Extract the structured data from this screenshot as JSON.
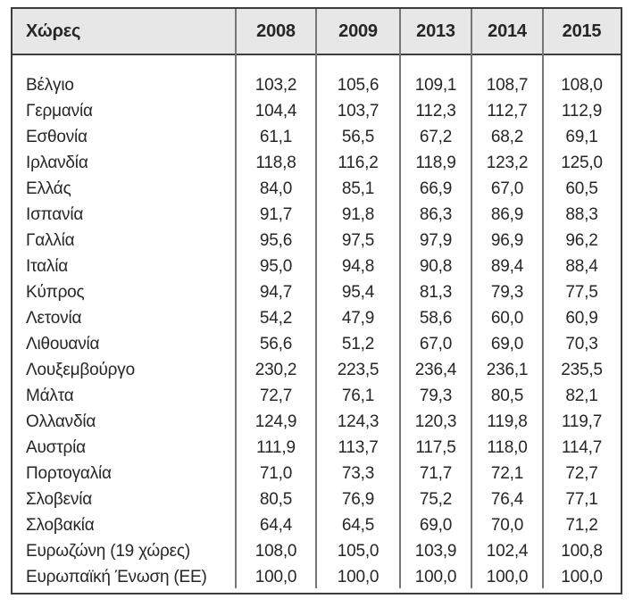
{
  "chart_data": {
    "type": "table",
    "title": "",
    "columns": [
      "Χώρες",
      "2008",
      "2009",
      "2013",
      "2014",
      "2015"
    ],
    "rows": [
      {
        "country": "Βέλγιο",
        "values": [
          "103,2",
          "105,6",
          "109,1",
          "108,7",
          "108,0"
        ]
      },
      {
        "country": "Γερμανία",
        "values": [
          "104,4",
          "103,7",
          "112,3",
          "112,7",
          "112,9"
        ]
      },
      {
        "country": "Εσθονία",
        "values": [
          "61,1",
          "56,5",
          "67,2",
          "68,2",
          "69,1"
        ]
      },
      {
        "country": "Ιρλανδία",
        "values": [
          "118,8",
          "116,2",
          "118,9",
          "123,2",
          "125,0"
        ]
      },
      {
        "country": "Ελλάς",
        "values": [
          "84,0",
          "85,1",
          "66,9",
          "67,0",
          "60,5"
        ]
      },
      {
        "country": "Ισπανία",
        "values": [
          "91,7",
          "91,8",
          "86,3",
          "86,9",
          "88,3"
        ]
      },
      {
        "country": "Γαλλία",
        "values": [
          "95,6",
          "97,5",
          "97,9",
          "96,9",
          "96,2"
        ]
      },
      {
        "country": "Ιταλία",
        "values": [
          "95,0",
          "94,8",
          "90,8",
          "89,4",
          "88,4"
        ]
      },
      {
        "country": "Κύπρος",
        "values": [
          "94,7",
          "95,4",
          "81,3",
          "79,3",
          "77,5"
        ]
      },
      {
        "country": "Λετονία",
        "values": [
          "54,2",
          "47,9",
          "58,6",
          "60,0",
          "60,9"
        ]
      },
      {
        "country": "Λιθουανία",
        "values": [
          "56,6",
          "51,2",
          "67,0",
          "69,0",
          "70,3"
        ]
      },
      {
        "country": "Λουξεμβούργο",
        "values": [
          "230,2",
          "223,5",
          "236,4",
          "236,1",
          "235,5"
        ]
      },
      {
        "country": "Μάλτα",
        "values": [
          "72,7",
          "76,1",
          "79,3",
          "80,5",
          "82,1"
        ]
      },
      {
        "country": "Ολλανδία",
        "values": [
          "124,9",
          "124,3",
          "120,3",
          "119,8",
          "119,7"
        ]
      },
      {
        "country": "Αυστρία",
        "values": [
          "111,9",
          "113,7",
          "117,5",
          "118,0",
          "114,7"
        ]
      },
      {
        "country": "Πορτογαλία",
        "values": [
          "71,0",
          "73,3",
          "71,7",
          "72,1",
          "72,7"
        ]
      },
      {
        "country": "Σλοβενία",
        "values": [
          "80,5",
          "76,9",
          "75,2",
          "76,4",
          "77,1"
        ]
      },
      {
        "country": "Σλοβακία",
        "values": [
          "64,4",
          "64,5",
          "69,0",
          "70,0",
          "71,2"
        ]
      },
      {
        "country": "Ευρωζώνη (19 χώρες)",
        "values": [
          "108,0",
          "105,0",
          "103,9",
          "102,4",
          "100,8"
        ]
      },
      {
        "country": "Ευρωπαϊκή Ένωση (ΕΕ)",
        "values": [
          "100,0",
          "100,0",
          "100,0",
          "100,0",
          "100,0"
        ]
      }
    ],
    "layout": {
      "grid": "vertical-rules-and-outer-border",
      "header_bg": "#e7e7e7",
      "outer_border_color": "#3d3d3d",
      "inner_rule_color": "#767676",
      "text_color": "#262626"
    }
  }
}
